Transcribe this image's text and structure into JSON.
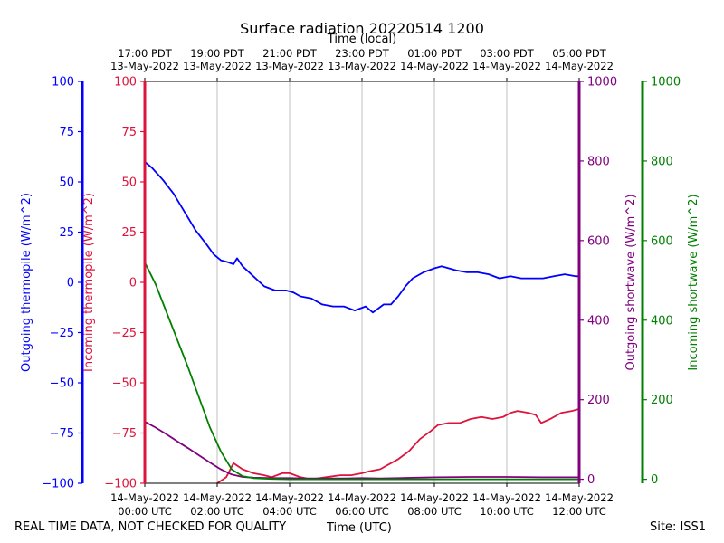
{
  "chart_data": {
    "type": "line",
    "title": "Surface radiation 20220514 1200",
    "top_axis_label": "Time (local)",
    "bottom_axis_label": "Time (UTC)",
    "x_range_hours_utc": [
      0,
      12
    ],
    "bottom_ticks": [
      {
        "hour": 0,
        "date": "14-May-2022",
        "time": "00:00 UTC"
      },
      {
        "hour": 2,
        "date": "14-May-2022",
        "time": "02:00 UTC"
      },
      {
        "hour": 4,
        "date": "14-May-2022",
        "time": "04:00 UTC"
      },
      {
        "hour": 6,
        "date": "14-May-2022",
        "time": "06:00 UTC"
      },
      {
        "hour": 8,
        "date": "14-May-2022",
        "time": "08:00 UTC"
      },
      {
        "hour": 10,
        "date": "14-May-2022",
        "time": "10:00 UTC"
      },
      {
        "hour": 12,
        "date": "14-May-2022",
        "time": "12:00 UTC"
      }
    ],
    "top_ticks": [
      {
        "hour": 0,
        "time": "17:00 PDT",
        "date": "13-May-2022"
      },
      {
        "hour": 2,
        "time": "19:00 PDT",
        "date": "13-May-2022"
      },
      {
        "hour": 4,
        "time": "21:00 PDT",
        "date": "13-May-2022"
      },
      {
        "hour": 6,
        "time": "23:00 PDT",
        "date": "13-May-2022"
      },
      {
        "hour": 8,
        "time": "01:00 PDT",
        "date": "14-May-2022"
      },
      {
        "hour": 10,
        "time": "03:00 PDT",
        "date": "14-May-2022"
      },
      {
        "hour": 12,
        "time": "05:00 PDT",
        "date": "14-May-2022"
      }
    ],
    "axes": [
      {
        "id": "out_thermo",
        "label": "Outgoing thermopile (W/m^2)",
        "color": "#0000ff",
        "side": "left-outer",
        "range": [
          -100,
          100
        ],
        "ticks": [
          -100,
          -75,
          -50,
          -25,
          0,
          25,
          50,
          75,
          100
        ]
      },
      {
        "id": "in_thermo",
        "label": "Incoming thermopile (W/m^2)",
        "color": "#dc143c",
        "side": "left-inner",
        "range": [
          -100,
          100
        ],
        "ticks": [
          -100,
          -75,
          -50,
          -25,
          0,
          25,
          50,
          75,
          100
        ]
      },
      {
        "id": "out_sw",
        "label": "Outgoing shortwave (W/m^2)",
        "color": "#800080",
        "side": "right-inner",
        "range": [
          -10,
          1000
        ],
        "ticks": [
          0,
          200,
          400,
          600,
          800,
          1000
        ]
      },
      {
        "id": "in_sw",
        "label": "Incoming shortwave (W/m^2)",
        "color": "#008000",
        "side": "right-outer",
        "range": [
          -10,
          1000
        ],
        "ticks": [
          0,
          200,
          400,
          600,
          800,
          1000
        ]
      }
    ],
    "series": [
      {
        "name": "Outgoing thermopile",
        "axis": "out_thermo",
        "color": "#0000ff",
        "points": [
          [
            0,
            60
          ],
          [
            0.2,
            57
          ],
          [
            0.5,
            51
          ],
          [
            0.8,
            44
          ],
          [
            1.1,
            35
          ],
          [
            1.4,
            26
          ],
          [
            1.7,
            19
          ],
          [
            1.9,
            14
          ],
          [
            2.1,
            11
          ],
          [
            2.3,
            10
          ],
          [
            2.45,
            9
          ],
          [
            2.55,
            12
          ],
          [
            2.7,
            8
          ],
          [
            3,
            3
          ],
          [
            3.3,
            -2
          ],
          [
            3.6,
            -4
          ],
          [
            3.9,
            -4
          ],
          [
            4.1,
            -5
          ],
          [
            4.3,
            -7
          ],
          [
            4.6,
            -8
          ],
          [
            4.9,
            -11
          ],
          [
            5.2,
            -12
          ],
          [
            5.5,
            -12
          ],
          [
            5.8,
            -14
          ],
          [
            5.95,
            -13
          ],
          [
            6.1,
            -12
          ],
          [
            6.3,
            -15
          ],
          [
            6.45,
            -13
          ],
          [
            6.6,
            -11
          ],
          [
            6.8,
            -11
          ],
          [
            7.0,
            -7
          ],
          [
            7.2,
            -2
          ],
          [
            7.4,
            2
          ],
          [
            7.7,
            5
          ],
          [
            8.0,
            7
          ],
          [
            8.2,
            8
          ],
          [
            8.4,
            7
          ],
          [
            8.6,
            6
          ],
          [
            8.9,
            5
          ],
          [
            9.2,
            5
          ],
          [
            9.5,
            4
          ],
          [
            9.8,
            2
          ],
          [
            10.1,
            3
          ],
          [
            10.4,
            2
          ],
          [
            10.7,
            2
          ],
          [
            11.0,
            2
          ],
          [
            11.3,
            3
          ],
          [
            11.6,
            4
          ],
          [
            11.9,
            3
          ],
          [
            12,
            3
          ]
        ]
      },
      {
        "name": "Incoming thermopile",
        "axis": "in_thermo",
        "color": "#dc143c",
        "points": [
          [
            2.0,
            -100
          ],
          [
            2.25,
            -97
          ],
          [
            2.45,
            -90
          ],
          [
            2.7,
            -93
          ],
          [
            3.0,
            -95
          ],
          [
            3.3,
            -96
          ],
          [
            3.5,
            -97
          ],
          [
            3.8,
            -95
          ],
          [
            4.0,
            -95
          ],
          [
            4.3,
            -97
          ],
          [
            4.6,
            -98
          ],
          [
            5.0,
            -97
          ],
          [
            5.4,
            -96
          ],
          [
            5.7,
            -96
          ],
          [
            6.0,
            -95
          ],
          [
            6.2,
            -94
          ],
          [
            6.5,
            -93
          ],
          [
            6.8,
            -90
          ],
          [
            7.0,
            -88
          ],
          [
            7.3,
            -84
          ],
          [
            7.6,
            -78
          ],
          [
            7.9,
            -74
          ],
          [
            8.1,
            -71
          ],
          [
            8.4,
            -70
          ],
          [
            8.7,
            -70
          ],
          [
            9.0,
            -68
          ],
          [
            9.3,
            -67
          ],
          [
            9.6,
            -68
          ],
          [
            9.9,
            -67
          ],
          [
            10.1,
            -65
          ],
          [
            10.3,
            -64
          ],
          [
            10.6,
            -65
          ],
          [
            10.8,
            -66
          ],
          [
            10.95,
            -70
          ],
          [
            11.2,
            -68
          ],
          [
            11.5,
            -65
          ],
          [
            11.8,
            -64
          ],
          [
            12,
            -63
          ]
        ]
      },
      {
        "name": "Outgoing shortwave",
        "axis": "out_sw",
        "color": "#800080",
        "points": [
          [
            0,
            145
          ],
          [
            0.3,
            130
          ],
          [
            0.6,
            113
          ],
          [
            0.9,
            95
          ],
          [
            1.2,
            78
          ],
          [
            1.5,
            60
          ],
          [
            1.8,
            42
          ],
          [
            2.1,
            25
          ],
          [
            2.4,
            12
          ],
          [
            2.7,
            6
          ],
          [
            3.0,
            4
          ],
          [
            3.5,
            3
          ],
          [
            4.0,
            3
          ],
          [
            4.5,
            2
          ],
          [
            5.0,
            2
          ],
          [
            5.5,
            2
          ],
          [
            6.0,
            3
          ],
          [
            6.5,
            2
          ],
          [
            7.0,
            3
          ],
          [
            7.5,
            4
          ],
          [
            8.0,
            5
          ],
          [
            9.0,
            6
          ],
          [
            10.0,
            6
          ],
          [
            11.0,
            5
          ],
          [
            12,
            5
          ]
        ]
      },
      {
        "name": "Incoming shortwave",
        "axis": "in_sw",
        "color": "#008000",
        "points": [
          [
            0,
            545
          ],
          [
            0.3,
            490
          ],
          [
            0.6,
            420
          ],
          [
            0.9,
            350
          ],
          [
            1.2,
            280
          ],
          [
            1.5,
            205
          ],
          [
            1.8,
            130
          ],
          [
            2.1,
            70
          ],
          [
            2.4,
            25
          ],
          [
            2.7,
            8
          ],
          [
            3.0,
            3
          ],
          [
            3.5,
            1
          ],
          [
            4.0,
            0
          ],
          [
            5.0,
            0
          ],
          [
            6.0,
            0
          ],
          [
            7.0,
            0
          ],
          [
            8.0,
            0
          ],
          [
            9.0,
            0
          ],
          [
            10.0,
            0
          ],
          [
            11.0,
            0
          ],
          [
            12,
            0
          ]
        ]
      }
    ]
  },
  "footer": {
    "disclaimer": "REAL TIME DATA, NOT CHECKED FOR QUALITY",
    "xlabel": "Time (UTC)",
    "site": "Site: ISS1"
  }
}
